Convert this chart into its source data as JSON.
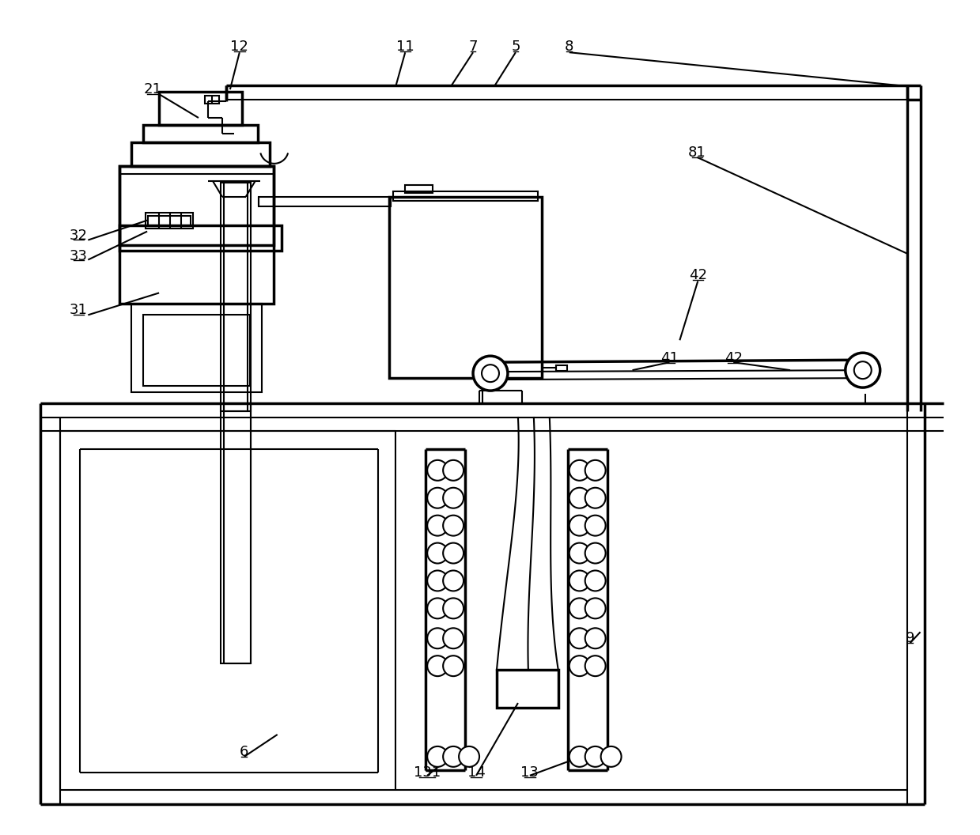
{
  "bg": "#ffffff",
  "lc": "#000000",
  "lw": 1.5,
  "blw": 2.5,
  "fs": 13,
  "labels": [
    [
      "12",
      302,
      58
    ],
    [
      "21",
      192,
      112
    ],
    [
      "11",
      512,
      58
    ],
    [
      "7",
      598,
      58
    ],
    [
      "5",
      652,
      58
    ],
    [
      "8",
      720,
      58
    ],
    [
      "81",
      882,
      192
    ],
    [
      "32",
      98,
      297
    ],
    [
      "33",
      98,
      323
    ],
    [
      "31",
      98,
      392
    ],
    [
      "42",
      883,
      348
    ],
    [
      "41",
      847,
      453
    ],
    [
      "42",
      928,
      453
    ],
    [
      "6",
      308,
      952
    ],
    [
      "131",
      540,
      978
    ],
    [
      "14",
      602,
      978
    ],
    [
      "13",
      670,
      978
    ],
    [
      "9",
      1152,
      808
    ]
  ]
}
